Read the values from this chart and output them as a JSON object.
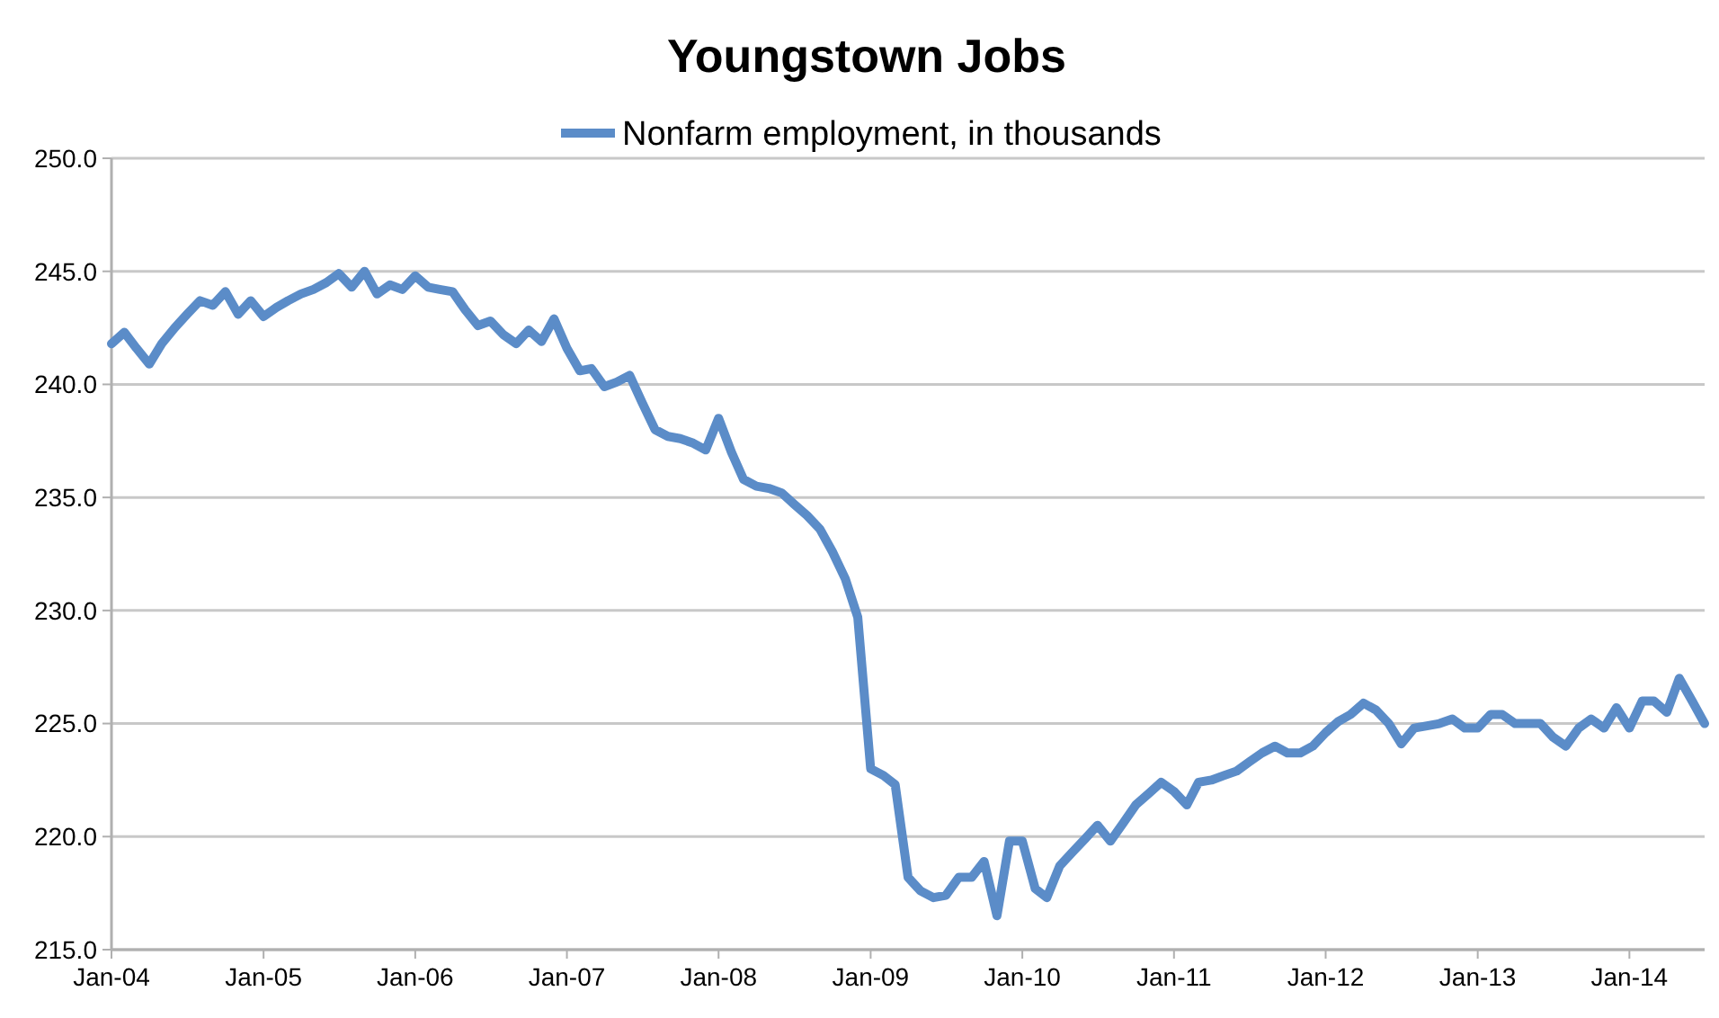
{
  "chart_data": {
    "type": "line",
    "title": "Youngstown Jobs",
    "x": [
      "2004-01",
      "2004-02",
      "2004-03",
      "2004-04",
      "2004-05",
      "2004-06",
      "2004-07",
      "2004-08",
      "2004-09",
      "2004-10",
      "2004-11",
      "2004-12",
      "2005-01",
      "2005-02",
      "2005-03",
      "2005-04",
      "2005-05",
      "2005-06",
      "2005-07",
      "2005-08",
      "2005-09",
      "2005-10",
      "2005-11",
      "2005-12",
      "2006-01",
      "2006-02",
      "2006-03",
      "2006-04",
      "2006-05",
      "2006-06",
      "2006-07",
      "2006-08",
      "2006-09",
      "2006-10",
      "2006-11",
      "2006-12",
      "2007-01",
      "2007-02",
      "2007-03",
      "2007-04",
      "2007-05",
      "2007-06",
      "2007-07",
      "2007-08",
      "2007-09",
      "2007-10",
      "2007-11",
      "2007-12",
      "2008-01",
      "2008-02",
      "2008-03",
      "2008-04",
      "2008-05",
      "2008-06",
      "2008-07",
      "2008-08",
      "2008-09",
      "2008-10",
      "2008-11",
      "2008-12",
      "2009-01",
      "2009-02",
      "2009-03",
      "2009-04",
      "2009-05",
      "2009-06",
      "2009-07",
      "2009-08",
      "2009-09",
      "2009-10",
      "2009-11",
      "2009-12",
      "2010-01",
      "2010-02",
      "2010-03",
      "2010-04",
      "2010-05",
      "2010-06",
      "2010-07",
      "2010-08",
      "2010-09",
      "2010-10",
      "2010-11",
      "2010-12",
      "2011-01",
      "2011-02",
      "2011-03",
      "2011-04",
      "2011-05",
      "2011-06",
      "2011-07",
      "2011-08",
      "2011-09",
      "2011-10",
      "2011-11",
      "2011-12",
      "2012-01",
      "2012-02",
      "2012-03",
      "2012-04",
      "2012-05",
      "2012-06",
      "2012-07",
      "2012-08",
      "2012-09",
      "2012-10",
      "2012-11",
      "2012-12",
      "2013-01",
      "2013-02",
      "2013-03",
      "2013-04",
      "2013-05",
      "2013-06",
      "2013-07",
      "2013-08",
      "2013-09",
      "2013-10",
      "2013-11",
      "2013-12",
      "2014-01",
      "2014-02",
      "2014-03",
      "2014-04",
      "2014-05",
      "2014-06",
      "2014-07"
    ],
    "series": [
      {
        "name": "Nonfarm employment, in thousands",
        "color": "#5b8cc8",
        "values": [
          241.8,
          242.3,
          241.6,
          240.9,
          241.8,
          242.5,
          243.1,
          243.7,
          243.5,
          244.1,
          243.1,
          243.7,
          243.0,
          243.4,
          243.7,
          244.0,
          244.2,
          244.5,
          244.9,
          244.3,
          245.0,
          244.0,
          244.4,
          244.2,
          244.8,
          244.3,
          244.2,
          244.1,
          243.3,
          242.6,
          242.8,
          242.2,
          241.8,
          242.4,
          241.9,
          242.9,
          241.6,
          240.6,
          240.7,
          239.9,
          240.1,
          240.4,
          239.2,
          238.0,
          237.7,
          237.6,
          237.4,
          237.1,
          238.5,
          237.0,
          235.8,
          235.5,
          235.4,
          235.2,
          234.7,
          234.2,
          233.6,
          232.6,
          231.4,
          229.7,
          223.0,
          222.7,
          222.3,
          218.2,
          217.6,
          217.3,
          217.4,
          218.2,
          218.2,
          218.9,
          216.5,
          219.8,
          219.8,
          217.7,
          217.3,
          218.7,
          219.3,
          219.9,
          220.5,
          219.8,
          220.6,
          221.4,
          221.9,
          222.4,
          222.0,
          221.4,
          222.4,
          222.5,
          222.7,
          222.9,
          223.3,
          223.7,
          224.0,
          223.7,
          223.7,
          224.0,
          224.6,
          225.1,
          225.4,
          225.9,
          225.6,
          225.0,
          224.1,
          224.8,
          224.9,
          225.0,
          225.2,
          224.8,
          224.8,
          225.4,
          225.4,
          225.0,
          225.0,
          225.0,
          224.4,
          224.0,
          224.8,
          225.2,
          224.8,
          225.7,
          224.8,
          226.0,
          226.0,
          225.5,
          227.0,
          226.0,
          225.0
        ]
      }
    ],
    "xlim": [
      "2004-01",
      "2014-07"
    ],
    "xticks": [
      {
        "value": "2004-01",
        "label": "Jan-04"
      },
      {
        "value": "2005-01",
        "label": "Jan-05"
      },
      {
        "value": "2006-01",
        "label": "Jan-06"
      },
      {
        "value": "2007-01",
        "label": "Jan-07"
      },
      {
        "value": "2008-01",
        "label": "Jan-08"
      },
      {
        "value": "2009-01",
        "label": "Jan-09"
      },
      {
        "value": "2010-01",
        "label": "Jan-10"
      },
      {
        "value": "2011-01",
        "label": "Jan-11"
      },
      {
        "value": "2012-01",
        "label": "Jan-12"
      },
      {
        "value": "2013-01",
        "label": "Jan-13"
      },
      {
        "value": "2014-01",
        "label": "Jan-14"
      }
    ],
    "ylim": [
      215,
      250
    ],
    "yticks": [
      {
        "value": 215,
        "label": "215.0"
      },
      {
        "value": 220,
        "label": "220.0"
      },
      {
        "value": 225,
        "label": "225.0"
      },
      {
        "value": 230,
        "label": "230.0"
      },
      {
        "value": 235,
        "label": "235.0"
      },
      {
        "value": 240,
        "label": "240.0"
      },
      {
        "value": 245,
        "label": "245.0"
      },
      {
        "value": 250,
        "label": "250.0"
      }
    ],
    "grid": "y",
    "legend": "top",
    "marker": "none",
    "line_style": "solid"
  }
}
